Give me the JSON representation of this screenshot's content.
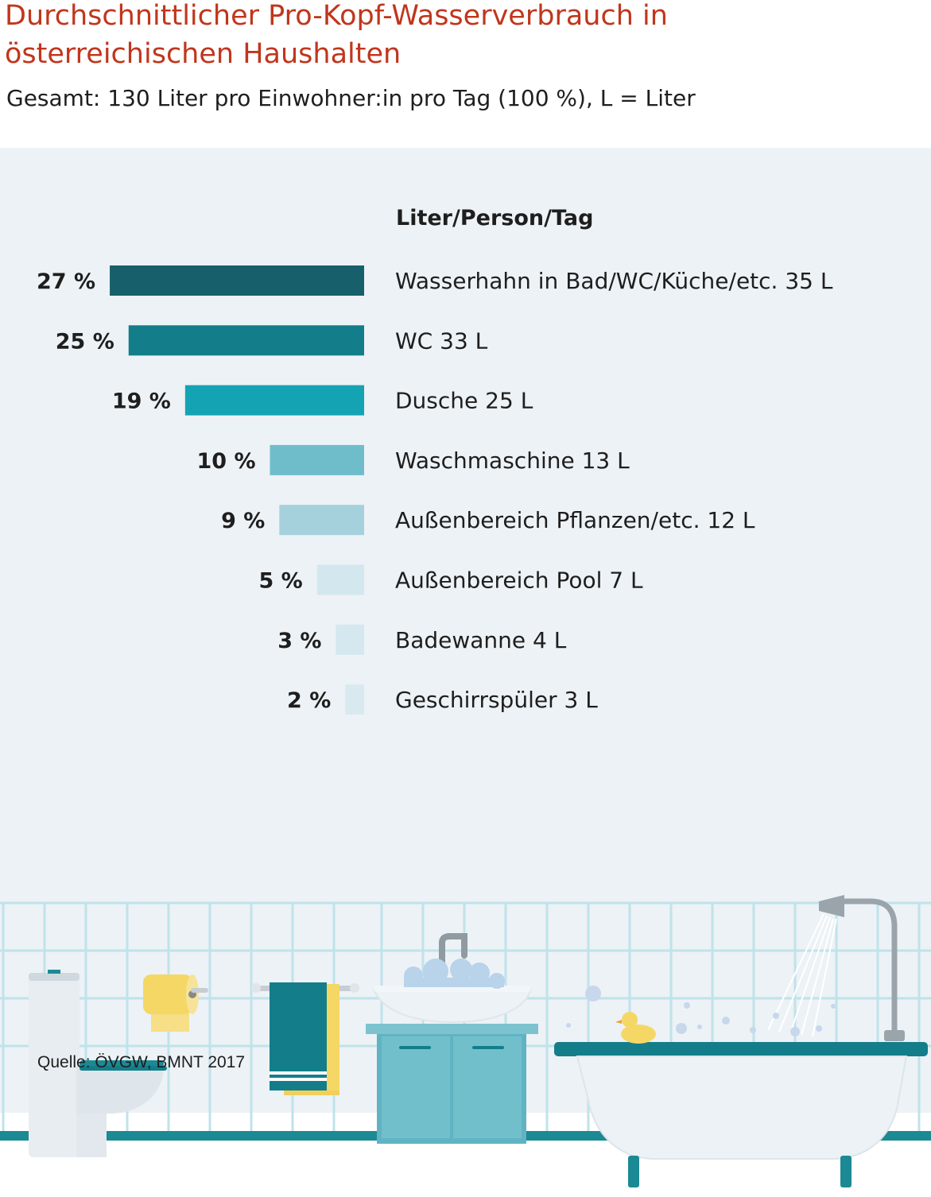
{
  "header": {
    "title": "Durchschnittlicher Pro-Kopf-Wasserverbrauch in\nösterreichischen Haushalten",
    "subtitle": "Gesamt: 130 Liter pro Einwohner:in pro Tag (100 %), L = Liter"
  },
  "footer": {
    "source": "Quelle: ÖVGW, BMNT 2017"
  },
  "colors": {
    "title": "#c0361c",
    "panel_background": "#edf2f6",
    "bars": [
      "#175f6b",
      "#137e8a",
      "#14a3b3",
      "#6fbccb",
      "#a5d1dc",
      "#d2e8ee",
      "#d5e8ef",
      "#d8eaf0"
    ]
  },
  "chart_data": {
    "type": "bar",
    "orientation": "horizontal",
    "ylabel": "Liter/Person/Tag",
    "categories": [
      "Wasserhahn in Bad/WC/Küche/etc. 35 L",
      "WC 33 L",
      "Dusche 25 L",
      "Waschmaschine 13 L",
      "Außenbereich Pflanzen/etc. 12 L",
      "Außenbereich Pool 7 L",
      "Badewanne 4 L",
      "Geschirrspüler 3 L"
    ],
    "liters": [
      35,
      33,
      25,
      13,
      12,
      7,
      4,
      3
    ],
    "values": [
      27,
      25,
      19,
      10,
      9,
      5,
      3,
      2
    ],
    "value_labels": [
      "27 %",
      "25 %",
      "19 %",
      "10 %",
      "9 %",
      "5 %",
      "3 %",
      "2 %"
    ],
    "unit": "%",
    "total_liters": 130,
    "grid": false,
    "legend": "none"
  },
  "illustration": {
    "icons": [
      "tile-wall",
      "toilet-icon",
      "toilet-paper-icon",
      "towel-icon",
      "sink-cabinet-icon",
      "faucet-icon",
      "bathtub-icon",
      "rubber-duck-icon",
      "shower-head-icon"
    ]
  }
}
